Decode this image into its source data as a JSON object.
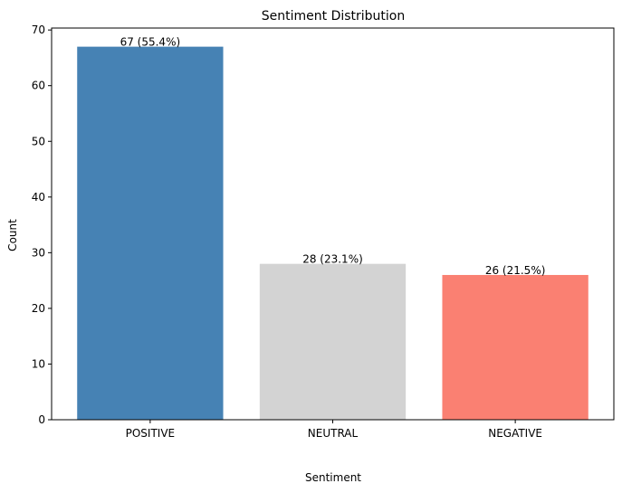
{
  "chart_data": {
    "type": "bar",
    "title": "Sentiment Distribution",
    "xlabel": "Sentiment",
    "ylabel": "Count",
    "categories": [
      "POSITIVE",
      "NEUTRAL",
      "NEGATIVE"
    ],
    "values": [
      67,
      28,
      26
    ],
    "data_labels": [
      "67 (55.4%)",
      "28 (23.1%)",
      "26 (21.5%)"
    ],
    "colors": [
      "#4682b4",
      "#d3d3d3",
      "#fa8072"
    ],
    "ylim": [
      0,
      70.35
    ],
    "yticks": [
      0,
      10,
      20,
      30,
      40,
      50,
      60,
      70
    ],
    "grid": false,
    "legend": "none"
  }
}
